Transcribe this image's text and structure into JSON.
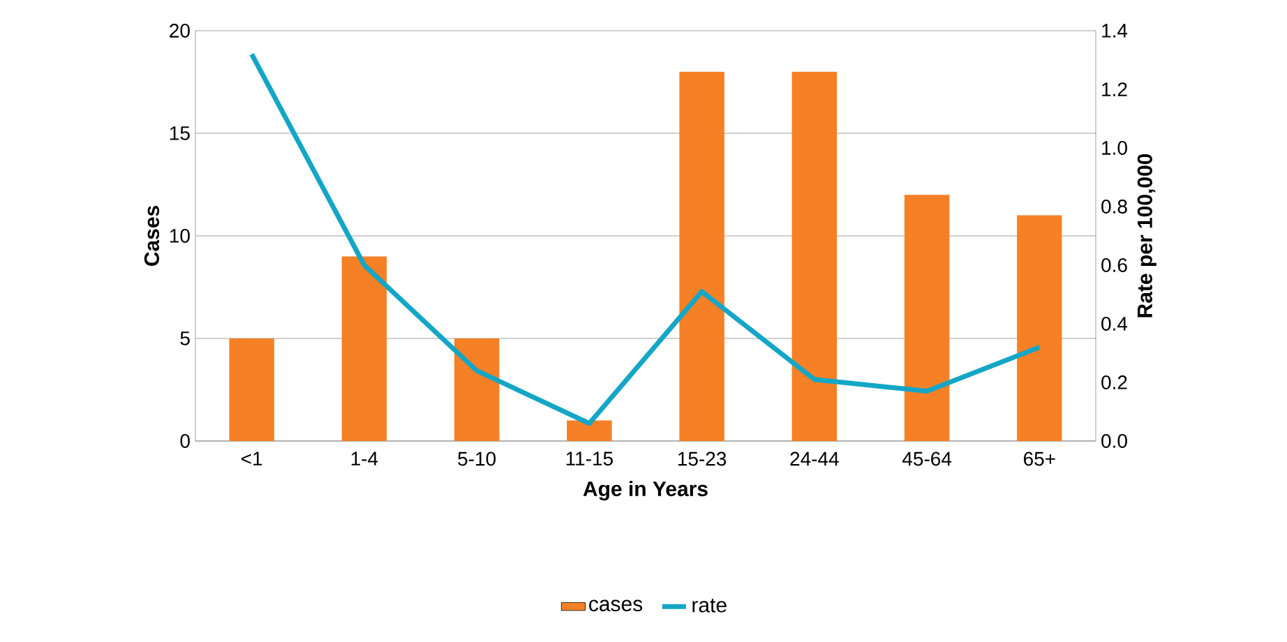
{
  "chart_data": {
    "type": "bar",
    "xlabel": "Age in Years",
    "ylabel": "Cases",
    "y2label": "Rate per 100,000",
    "categories": [
      "<1",
      "1-4",
      "5-10",
      "11-15",
      "15-23",
      "24-44",
      "45-64",
      "65+"
    ],
    "series": [
      {
        "name": "cases",
        "color": "#f58025",
        "values": [
          5,
          9,
          5,
          1,
          18,
          18,
          12,
          11
        ]
      },
      {
        "name": "rate",
        "type": "line",
        "axis": "y2",
        "color": "#14a6c6",
        "values": [
          1.32,
          0.6,
          0.24,
          0.06,
          0.51,
          0.21,
          0.17,
          0.32
        ]
      }
    ],
    "ylim": [
      0,
      20
    ],
    "yticks": [
      0,
      5,
      10,
      15,
      20
    ],
    "y2lim": [
      0,
      1.4
    ],
    "y2ticks": [
      {
        "value": 0,
        "label": "0.0"
      },
      {
        "value": 0.2,
        "label": "0.2"
      },
      {
        "value": 0.4,
        "label": "0.4"
      },
      {
        "value": 0.6,
        "label": "0.6"
      },
      {
        "value": 0.8,
        "label": "0.8"
      },
      {
        "value": 1.0,
        "label": "1.0"
      },
      {
        "value": 1.2,
        "label": "1.2"
      },
      {
        "value": 1.4,
        "label": "1.4"
      }
    ],
    "grid": "y",
    "legend": "bottom"
  }
}
